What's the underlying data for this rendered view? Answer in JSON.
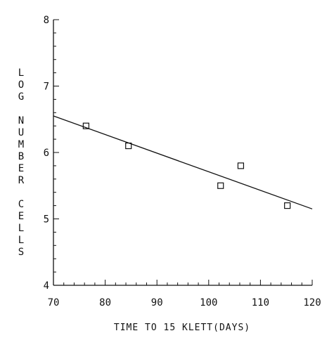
{
  "chart_data": {
    "type": "scatter",
    "xlabel": "TIME TO 15 KLETT(DAYS)",
    "ylabel": "LOG NUMBER CELLS",
    "xlim": [
      70,
      120
    ],
    "ylim": [
      4,
      8
    ],
    "x_ticks": [
      "70",
      "80",
      "90",
      "100",
      "110",
      "120"
    ],
    "y_ticks": [
      "4",
      "5",
      "6",
      "7",
      "8"
    ],
    "grid": false,
    "series": [
      {
        "marker": "open-square",
        "points": [
          {
            "x": 76.3,
            "y": 6.4
          },
          {
            "x": 84.5,
            "y": 6.1
          },
          {
            "x": 102.3,
            "y": 5.5
          },
          {
            "x": 106.2,
            "y": 5.8
          },
          {
            "x": 115.2,
            "y": 5.2
          }
        ]
      }
    ],
    "fit_line": {
      "x": [
        70,
        120
      ],
      "y": [
        6.55,
        5.15
      ]
    }
  }
}
